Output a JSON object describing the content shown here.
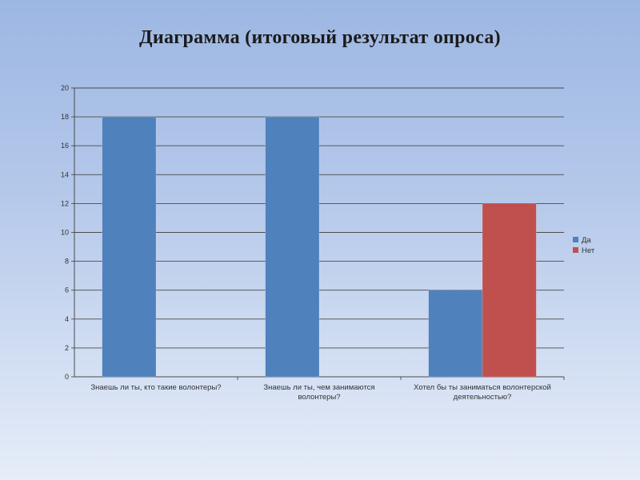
{
  "slide": {
    "title": "Диаграмма (итоговый результат опроса)"
  },
  "colors": {
    "series_yes": "#4f81bd",
    "series_no": "#c0504d",
    "gridline": "#4a4a4a"
  },
  "chart_data": {
    "type": "bar",
    "title": "Диаграмма (итоговый результат опроса)",
    "categories": [
      [
        "Знаешь ли ты, кто такие волонтеры?"
      ],
      [
        "Знаешь ли ты, чем  занимаются",
        "волонтеры?"
      ],
      [
        "Хотел бы ты заниматься волонтерской",
        "деятельностью?"
      ]
    ],
    "series": [
      {
        "name": "Да",
        "values": [
          18,
          18,
          6
        ],
        "color": "#4f81bd"
      },
      {
        "name": "Нет",
        "values": [
          0,
          0,
          12
        ],
        "color": "#c0504d"
      }
    ],
    "ylim": [
      0,
      20
    ],
    "yticks": [
      0,
      2,
      4,
      6,
      8,
      10,
      12,
      14,
      16,
      18,
      20
    ],
    "grid": true,
    "legend": "right",
    "xlabel": "",
    "ylabel": ""
  }
}
